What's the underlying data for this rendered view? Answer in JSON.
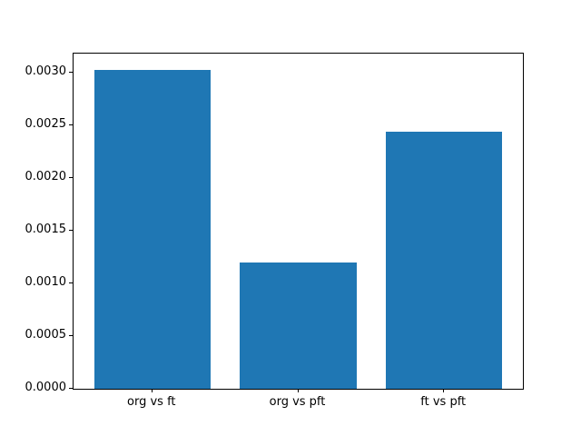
{
  "chart_data": {
    "type": "bar",
    "categories": [
      "org vs ft",
      "org vs pft",
      "ft vs pft"
    ],
    "values": [
      0.00303,
      0.0012,
      0.00244
    ],
    "title": "",
    "xlabel": "",
    "ylabel": "",
    "ylim": [
      0.0,
      0.0031815
    ],
    "yticks": [
      0.0,
      0.0005,
      0.001,
      0.0015,
      0.002,
      0.0025,
      0.003
    ],
    "ytick_labels": [
      "0.0000",
      "0.0005",
      "0.0010",
      "0.0015",
      "0.0020",
      "0.0025",
      "0.0030"
    ],
    "bar_color": "#1f77b4",
    "grid": false,
    "legend_position": "none"
  },
  "figure": {
    "background": "#ffffff",
    "spine_color": "#000000"
  }
}
